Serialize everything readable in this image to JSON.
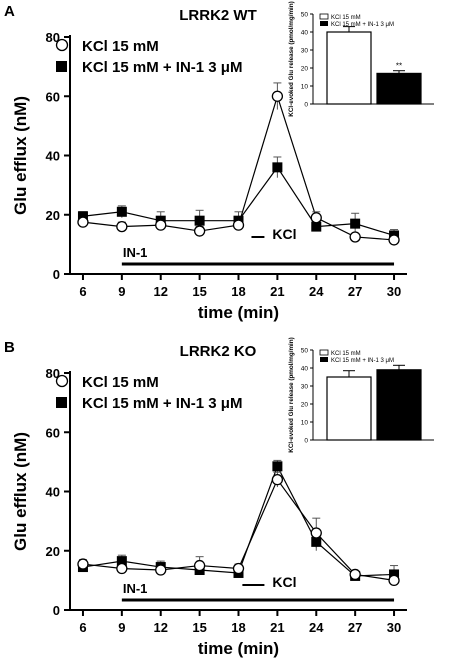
{
  "colors": {
    "ink": "#000000",
    "paper": "#ffffff",
    "error_bar": "#555555"
  },
  "chart_data": [
    {
      "type": "line",
      "panel_label": "A",
      "title": "LRRK2 WT",
      "xlabel": "time (min)",
      "ylabel": "Glu efflux (nM)",
      "x": [
        6,
        9,
        12,
        15,
        18,
        21,
        24,
        27,
        30
      ],
      "xlim": [
        5,
        31
      ],
      "ylim": [
        0,
        80
      ],
      "xticks": [
        "6",
        "9",
        "12",
        "15",
        "18",
        "21",
        "24",
        "27",
        "30"
      ],
      "yticks": [
        "0",
        "20",
        "40",
        "60",
        "80"
      ],
      "legend_position": "top-left",
      "series": [
        {
          "name": "KCl 15 mM",
          "marker": "open-circle",
          "values": [
            17.5,
            16,
            16.5,
            14.5,
            16.5,
            60,
            19,
            12.5,
            11.5
          ],
          "errors": [
            1.5,
            1.5,
            1.5,
            1.5,
            1.5,
            4.5,
            2,
            1,
            1
          ]
        },
        {
          "name": "KCl 15 mM + IN-1 3 μM",
          "marker": "filled-square",
          "values": [
            19.5,
            21,
            18,
            18,
            18,
            36,
            16,
            17,
            13
          ],
          "errors": [
            1.5,
            2,
            3,
            3.5,
            3,
            3.5,
            1.5,
            3.5,
            2
          ]
        }
      ],
      "annotations": [
        {
          "label": "IN-1",
          "bar_x": [
            9,
            30
          ]
        },
        {
          "label": "KCl",
          "bar_x": [
            19,
            20
          ]
        }
      ],
      "inset": {
        "type": "bar",
        "ylabel": "KCl-evoked Glu release (pmol/mg/min)",
        "ylim": [
          0,
          50
        ],
        "yticks": [
          "0",
          "10",
          "20",
          "30",
          "40",
          "50"
        ],
        "legend": [
          "KCl 15 mM",
          "KCl 15 mM + IN-1 3 μM"
        ],
        "values": [
          40,
          17
        ],
        "errors": [
          3,
          1.5
        ],
        "annotation": "**"
      }
    },
    {
      "type": "line",
      "panel_label": "B",
      "title": "LRRK2 KO",
      "xlabel": "time (min)",
      "ylabel": "Glu efflux (nM)",
      "x": [
        6,
        9,
        12,
        15,
        18,
        21,
        24,
        27,
        30
      ],
      "xlim": [
        5,
        31
      ],
      "ylim": [
        0,
        80
      ],
      "xticks": [
        "6",
        "9",
        "12",
        "15",
        "18",
        "21",
        "24",
        "27",
        "30"
      ],
      "yticks": [
        "0",
        "20",
        "40",
        "60",
        "80"
      ],
      "legend_position": "top-left",
      "series": [
        {
          "name": "KCl 15 mM",
          "marker": "open-circle",
          "values": [
            15.5,
            14,
            13.5,
            15,
            14,
            44,
            26,
            12,
            10
          ],
          "errors": [
            1.5,
            1.5,
            1.5,
            3,
            1.5,
            2.5,
            5,
            1,
            1.5
          ]
        },
        {
          "name": "KCl 15 mM + IN-1 3 μM",
          "marker": "filled-square",
          "values": [
            14.5,
            16.5,
            14.5,
            13.5,
            12.5,
            48.5,
            23,
            11.5,
            12
          ],
          "errors": [
            1.5,
            2,
            2,
            1.5,
            1.5,
            2,
            3,
            1,
            3
          ]
        }
      ],
      "annotations": [
        {
          "label": "IN-1",
          "bar_x": [
            9,
            30
          ]
        },
        {
          "label": "KCl",
          "bar_x": [
            18.3,
            20
          ]
        }
      ],
      "inset": {
        "type": "bar",
        "ylabel": "KCl-evoked Glu release (pmol/mg/min)",
        "ylim": [
          0,
          50
        ],
        "yticks": [
          "0",
          "10",
          "20",
          "30",
          "40",
          "50"
        ],
        "legend": [
          "KCl 15 mM",
          "KCl 15 mM + IN-1 3 μM"
        ],
        "values": [
          35,
          39
        ],
        "errors": [
          3.5,
          2.5
        ],
        "annotation": ""
      }
    }
  ]
}
